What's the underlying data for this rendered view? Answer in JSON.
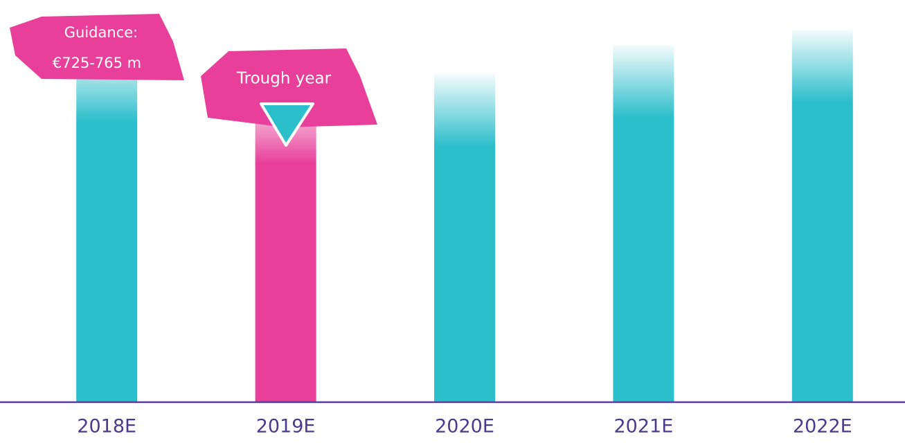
{
  "chart_data": {
    "type": "bar",
    "categories": [
      "2018E",
      "2019E",
      "2020E",
      "2021E",
      "2022E"
    ],
    "values": [
      439,
      388,
      408,
      444,
      463
    ],
    "colors": [
      "#2bbecb",
      "#e8409a",
      "#2bbecb",
      "#2bbecb",
      "#2bbecb"
    ],
    "ylim": [
      0,
      500
    ],
    "annotations": [
      {
        "lines": [
          "Guidance:",
          "€725-765 m"
        ],
        "category": "2018E"
      },
      {
        "lines": [
          "Trough year"
        ],
        "category": "2019E"
      }
    ]
  }
}
